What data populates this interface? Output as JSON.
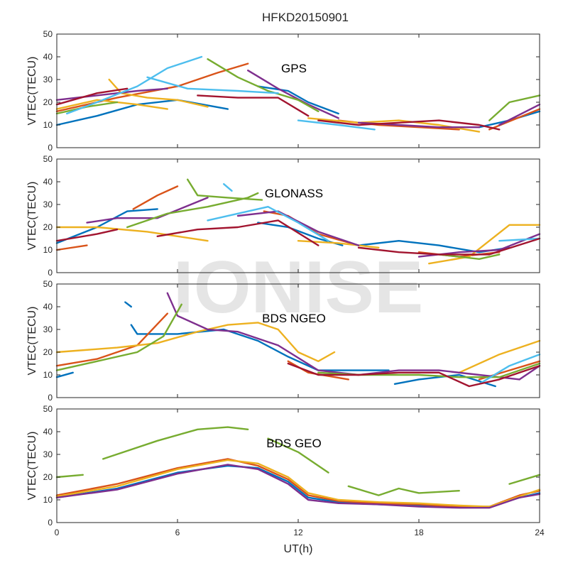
{
  "title": "HFKD20150901",
  "watermark": "IONISE",
  "colors": [
    "#0072BD",
    "#D95319",
    "#EDB120",
    "#7E2F8E",
    "#77AC30",
    "#4DBEEE",
    "#A2142F"
  ],
  "chart_data": [
    {
      "type": "line",
      "label": "GPS",
      "ylabel": "VTEC(TECU)",
      "xlabel": "",
      "xlim": [
        0,
        24
      ],
      "ylim": [
        0,
        50
      ],
      "xticks": [
        0,
        6,
        12,
        18,
        24
      ],
      "yticks": [
        0,
        10,
        20,
        30,
        40,
        50
      ],
      "grid": false,
      "series": [
        {
          "color": 0,
          "x": [
            0,
            2,
            4,
            6,
            8.5
          ],
          "y": [
            10,
            14,
            19,
            21,
            17
          ]
        },
        {
          "color": 0,
          "x": [
            10,
            11.5,
            12.5,
            14
          ],
          "y": [
            27,
            25,
            20,
            15
          ]
        },
        {
          "color": 0,
          "x": [
            21,
            22.5,
            24
          ],
          "y": [
            9,
            12,
            16
          ]
        },
        {
          "color": 1,
          "x": [
            0,
            3,
            6,
            8,
            9.5
          ],
          "y": [
            16,
            22,
            27,
            33,
            37
          ]
        },
        {
          "color": 1,
          "x": [
            14,
            16,
            18,
            20
          ],
          "y": [
            12,
            10,
            9,
            8
          ]
        },
        {
          "color": 1,
          "x": [
            21.5,
            24
          ],
          "y": [
            8,
            17
          ]
        },
        {
          "color": 2,
          "x": [
            0,
            2,
            4,
            5.5
          ],
          "y": [
            17,
            21,
            19,
            17
          ]
        },
        {
          "color": 2,
          "x": [
            2.6,
            3.2,
            4.5,
            6,
            7.5
          ],
          "y": [
            30,
            24,
            22,
            21,
            18
          ]
        },
        {
          "color": 2,
          "x": [
            12.5,
            15,
            17,
            19,
            21
          ],
          "y": [
            13,
            11,
            12,
            10,
            7
          ]
        },
        {
          "color": 3,
          "x": [
            0,
            2,
            4,
            5.5
          ],
          "y": [
            21,
            23,
            25,
            26
          ]
        },
        {
          "color": 3,
          "x": [
            9.5,
            11,
            12.5,
            14
          ],
          "y": [
            34,
            26,
            19,
            13
          ]
        },
        {
          "color": 3,
          "x": [
            15,
            17,
            19,
            21
          ],
          "y": [
            11,
            10,
            9,
            9
          ]
        },
        {
          "color": 3,
          "x": [
            22,
            24
          ],
          "y": [
            10,
            19
          ]
        },
        {
          "color": 4,
          "x": [
            0,
            1.5,
            3
          ],
          "y": [
            15,
            18,
            20
          ]
        },
        {
          "color": 4,
          "x": [
            7.5,
            9,
            10.5,
            12,
            13
          ],
          "y": [
            39,
            31,
            25,
            21,
            16
          ]
        },
        {
          "color": 4,
          "x": [
            21.5,
            22.5,
            24
          ],
          "y": [
            12,
            20,
            23
          ]
        },
        {
          "color": 5,
          "x": [
            0.5,
            2,
            4,
            5.5,
            7.2
          ],
          "y": [
            15,
            20,
            27,
            35,
            40
          ]
        },
        {
          "color": 5,
          "x": [
            4.5,
            6.5,
            9,
            11
          ],
          "y": [
            31,
            26,
            25,
            24
          ]
        },
        {
          "color": 5,
          "x": [
            12,
            14,
            15.8
          ],
          "y": [
            12,
            10,
            8
          ]
        },
        {
          "color": 6,
          "x": [
            0,
            2,
            3.5
          ],
          "y": [
            19,
            24,
            26
          ]
        },
        {
          "color": 6,
          "x": [
            7,
            9,
            11,
            12.5
          ],
          "y": [
            23,
            22,
            22,
            14
          ]
        },
        {
          "color": 6,
          "x": [
            13,
            15,
            17,
            19,
            21,
            22
          ],
          "y": [
            12,
            10,
            11,
            12,
            10,
            8
          ]
        }
      ]
    },
    {
      "type": "line",
      "label": "GLONASS",
      "ylabel": "VTEC(TECU)",
      "xlabel": "",
      "xlim": [
        0,
        24
      ],
      "ylim": [
        0,
        50
      ],
      "xticks": [
        0,
        6,
        12,
        18,
        24
      ],
      "yticks": [
        0,
        10,
        20,
        30,
        40,
        50
      ],
      "grid": false,
      "series": [
        {
          "color": 0,
          "x": [
            0,
            2,
            3.5,
            5
          ],
          "y": [
            13,
            20,
            27,
            28
          ]
        },
        {
          "color": 0,
          "x": [
            10,
            11.5,
            13,
            14.2
          ],
          "y": [
            22,
            20,
            15,
            12
          ]
        },
        {
          "color": 0,
          "x": [
            15,
            17,
            19,
            21,
            22.5
          ],
          "y": [
            12,
            14,
            12,
            9,
            11
          ]
        },
        {
          "color": 1,
          "x": [
            0,
            1.5
          ],
          "y": [
            10,
            12
          ]
        },
        {
          "color": 1,
          "x": [
            3.8,
            5,
            6
          ],
          "y": [
            28,
            34,
            38
          ]
        },
        {
          "color": 1,
          "x": [
            10.3,
            11.5,
            13,
            15
          ],
          "y": [
            27,
            25,
            17,
            12
          ]
        },
        {
          "color": 1,
          "x": [
            18,
            20,
            22
          ],
          "y": [
            9,
            7,
            9
          ]
        },
        {
          "color": 2,
          "x": [
            0,
            2,
            4.5,
            6,
            7.5
          ],
          "y": [
            20,
            20,
            18,
            16,
            14
          ]
        },
        {
          "color": 2,
          "x": [
            12,
            14,
            16
          ],
          "y": [
            14,
            13,
            11
          ]
        },
        {
          "color": 2,
          "x": [
            18.5,
            20.5,
            22.5,
            24
          ],
          "y": [
            4,
            7,
            21,
            21
          ]
        },
        {
          "color": 3,
          "x": [
            1.5,
            3,
            5,
            7.5
          ],
          "y": [
            22,
            24,
            24,
            33
          ]
        },
        {
          "color": 3,
          "x": [
            9,
            11,
            13,
            15
          ],
          "y": [
            25,
            27,
            18,
            12
          ]
        },
        {
          "color": 3,
          "x": [
            18,
            20,
            22,
            24
          ],
          "y": [
            7,
            9,
            10,
            17
          ]
        },
        {
          "color": 4,
          "x": [
            3.5,
            5.5,
            7.5,
            9.5,
            10
          ],
          "y": [
            20,
            26,
            29,
            33,
            35
          ]
        },
        {
          "color": 4,
          "x": [
            6.5,
            7,
            8.5,
            10.2
          ],
          "y": [
            41,
            34,
            33,
            32
          ]
        },
        {
          "color": 4,
          "x": [
            19,
            21,
            22
          ],
          "y": [
            8,
            6,
            8
          ]
        },
        {
          "color": 5,
          "x": [
            7.5,
            9,
            10.5,
            12,
            13.5
          ],
          "y": [
            23,
            26,
            29,
            22,
            14
          ]
        },
        {
          "color": 5,
          "x": [
            8.3,
            8.7
          ],
          "y": [
            39,
            36
          ]
        },
        {
          "color": 5,
          "x": [
            22,
            24
          ],
          "y": [
            14,
            15
          ]
        },
        {
          "color": 6,
          "x": [
            0,
            2,
            3
          ],
          "y": [
            14,
            17,
            19
          ]
        },
        {
          "color": 6,
          "x": [
            5,
            7,
            9,
            11,
            13
          ],
          "y": [
            16,
            19,
            20,
            23,
            12
          ]
        },
        {
          "color": 6,
          "x": [
            15,
            17,
            19,
            21.5,
            24
          ],
          "y": [
            11,
            9,
            8,
            8,
            15
          ]
        }
      ]
    },
    {
      "type": "line",
      "label": "BDS NGEO",
      "ylabel": "VTEC(TECU)",
      "xlabel": "",
      "xlim": [
        0,
        24
      ],
      "ylim": [
        0,
        50
      ],
      "xticks": [
        0,
        6,
        12,
        18,
        24
      ],
      "yticks": [
        0,
        10,
        20,
        30,
        40,
        50
      ],
      "grid": false,
      "series": [
        {
          "color": 0,
          "x": [
            0,
            0.8
          ],
          "y": [
            9,
            11
          ]
        },
        {
          "color": 0,
          "x": [
            3.4,
            3.7
          ],
          "y": [
            42,
            40
          ]
        },
        {
          "color": 0,
          "x": [
            3.7,
            4,
            6,
            8.3,
            10,
            11.5,
            13,
            15,
            16.5
          ],
          "y": [
            32,
            28,
            28,
            30,
            25,
            18,
            12,
            12,
            12
          ]
        },
        {
          "color": 0,
          "x": [
            16.8,
            18,
            20,
            21.8
          ],
          "y": [
            6,
            8,
            10,
            5
          ]
        },
        {
          "color": 1,
          "x": [
            0,
            2,
            4,
            5.5
          ],
          "y": [
            14,
            17,
            23,
            37
          ]
        },
        {
          "color": 1,
          "x": [
            11.5,
            12.5,
            14.5
          ],
          "y": [
            16,
            11,
            8
          ]
        },
        {
          "color": 1,
          "x": [
            21,
            22.5,
            24
          ],
          "y": [
            8,
            12,
            16
          ]
        },
        {
          "color": 2,
          "x": [
            0,
            3,
            5,
            7,
            8.5,
            10,
            11,
            12,
            13,
            13.8
          ],
          "y": [
            20,
            22,
            24,
            29,
            32,
            33,
            30,
            20,
            16,
            20
          ]
        },
        {
          "color": 2,
          "x": [
            20,
            22,
            24
          ],
          "y": [
            11,
            19,
            25
          ]
        },
        {
          "color": 3,
          "x": [
            5.5,
            6,
            7.5,
            9,
            11,
            13,
            15,
            17,
            19,
            21,
            23
          ],
          "y": [
            46,
            36,
            30,
            29,
            23,
            12,
            10,
            12,
            12,
            10,
            8
          ]
        },
        {
          "color": 3,
          "x": [
            23,
            24
          ],
          "y": [
            8,
            14
          ]
        },
        {
          "color": 4,
          "x": [
            0,
            2,
            4,
            5.3,
            6.2
          ],
          "y": [
            12,
            16,
            20,
            27,
            41
          ]
        },
        {
          "color": 4,
          "x": [
            13,
            15,
            18,
            20,
            22,
            24
          ],
          "y": [
            11,
            10,
            10,
            9,
            9,
            15
          ]
        },
        {
          "color": 5,
          "x": [
            21,
            22.5,
            24
          ],
          "y": [
            6,
            14,
            19
          ]
        },
        {
          "color": 6,
          "x": [
            11.5,
            13,
            15,
            17,
            19,
            20.5,
            22,
            24
          ],
          "y": [
            15,
            10,
            10,
            11,
            11,
            5,
            8,
            14
          ]
        }
      ]
    },
    {
      "type": "line",
      "label": "BDS GEO",
      "ylabel": "VTEC(TECU)",
      "xlabel": "UT(h)",
      "xlim": [
        0,
        24
      ],
      "ylim": [
        0,
        50
      ],
      "xticks": [
        0,
        6,
        12,
        18,
        24
      ],
      "yticks": [
        0,
        10,
        20,
        30,
        40,
        50
      ],
      "grid": false,
      "series": [
        {
          "color": 0,
          "x": [
            0,
            3,
            6,
            8.5,
            10,
            11.5,
            12.5,
            14,
            16,
            18,
            20,
            21.5,
            23,
            24
          ],
          "y": [
            11,
            15,
            22,
            25,
            24,
            18,
            11,
            9,
            8,
            7.5,
            7,
            7,
            11,
            13
          ]
        },
        {
          "color": 1,
          "x": [
            0,
            3,
            6,
            8.5,
            10,
            11.5,
            12.5,
            14,
            16,
            18,
            20,
            21.5,
            23,
            24
          ],
          "y": [
            12,
            17,
            24,
            28,
            25,
            19,
            12,
            9.5,
            8.5,
            8,
            7,
            7,
            12,
            14
          ]
        },
        {
          "color": 2,
          "x": [
            0,
            3,
            6,
            8.5,
            10,
            11.5,
            12.5,
            14,
            16,
            18,
            20,
            21.5,
            23,
            24
          ],
          "y": [
            11.5,
            16,
            23.5,
            27.5,
            26,
            20,
            13,
            10,
            9,
            8.5,
            7.5,
            7,
            11.5,
            14.5
          ]
        },
        {
          "color": 3,
          "x": [
            0,
            3,
            6,
            8.5,
            10,
            11.5,
            12.5,
            14,
            16,
            18,
            20,
            21.5,
            23,
            24
          ],
          "y": [
            11,
            14.5,
            21.5,
            25.5,
            23.5,
            17,
            10,
            8.5,
            8,
            7,
            6.5,
            6.5,
            11,
            12.5
          ]
        },
        {
          "color": 4,
          "x": [
            0,
            1.3
          ],
          "y": [
            20,
            21
          ]
        },
        {
          "color": 4,
          "x": [
            2.3,
            5,
            7,
            8.5,
            9.5
          ],
          "y": [
            28,
            36,
            41,
            42,
            41
          ]
        },
        {
          "color": 4,
          "x": [
            10.5,
            12,
            13.5
          ],
          "y": [
            37,
            31,
            22
          ]
        },
        {
          "color": 4,
          "x": [
            14.5,
            16,
            17,
            18,
            20
          ],
          "y": [
            16,
            12,
            15,
            13,
            14
          ]
        },
        {
          "color": 4,
          "x": [
            22.5,
            24
          ],
          "y": [
            17,
            21
          ]
        }
      ]
    }
  ]
}
